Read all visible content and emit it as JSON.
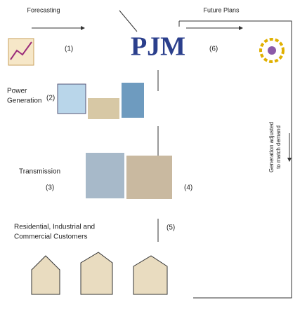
{
  "header": {
    "logo": "PJM"
  },
  "nodes": [
    {
      "label": "Forecasting",
      "step": "(1)"
    },
    {
      "label": "Future Plans",
      "step": "(6)"
    },
    {
      "label": [
        "Power",
        "Generation"
      ],
      "step": "(2)"
    },
    {
      "label": "Transmission",
      "step": "(3)"
    },
    {
      "label": "",
      "step": "(4)"
    },
    {
      "label": [
        "Residential, Industrial and",
        "Commercial Customers"
      ],
      "step": "(5)"
    }
  ],
  "side_note": [
    "Generation adjusted",
    "to match demand"
  ]
}
